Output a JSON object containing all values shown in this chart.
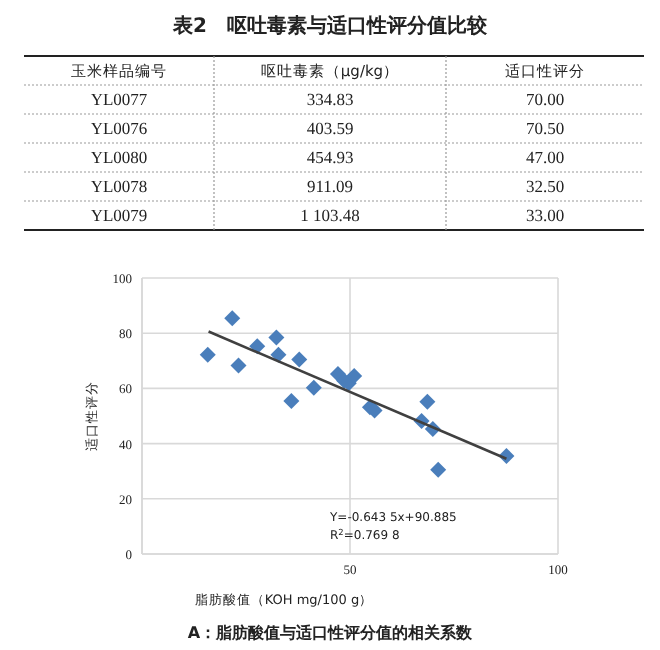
{
  "chart_data": [
    {
      "type": "other",
      "title": "表2　呕吐毒素与适口性评分值比较",
      "annotations": [
        "玉米样品编号",
        "呕吐毒素（μg/kg）",
        "适口性评分",
        "YL0077",
        "334.83",
        "70.00",
        "YL0076",
        "403.59",
        "70.50",
        "YL0080",
        "454.93",
        "47.00",
        "YL0078",
        "911.09",
        "32.50",
        "YL0079",
        "1 103.48",
        "33.00"
      ]
    },
    {
      "type": "scatter",
      "xlabel": "脂肪酸值（KOH mg/100 g）",
      "ylabel": "适口性评分",
      "xlim": [
        0,
        100
      ],
      "ylim": [
        0,
        100
      ],
      "xticks": [
        {
          "value": 0,
          "label": null
        },
        50,
        100
      ],
      "yticks": [
        0,
        20,
        40,
        60,
        80,
        100
      ],
      "grid": true,
      "series": [
        {
          "color": "#4a7ebb",
          "marker": "diamond",
          "x": [
            15.8,
            21.7,
            23.2,
            27.7,
            32.3,
            32.8,
            37.8,
            35.9,
            41.3,
            47.1,
            48.6,
            49.7,
            51.0,
            54.8,
            55.9,
            67.2,
            68.6,
            69.9,
            71.2,
            87.6
          ],
          "values": [
            72.2,
            85.4,
            68.3,
            75.3,
            78.4,
            72.2,
            70.5,
            55.4,
            60.2,
            65.2,
            62.8,
            61.9,
            64.5,
            53.2,
            52.0,
            48.2,
            55.2,
            45.3,
            30.5,
            35.5
          ]
        },
        {
          "type": "line",
          "marker": "none",
          "color": "#404040",
          "x": [
            16,
            87.6
          ],
          "values": [
            80.6,
            34.5
          ]
        }
      ],
      "annotations": [
        "Y=-0.643 5x+90.885",
        "R$^{2}$=0.769 8",
        "A：脂肪酸值与适口性评分值的相关系数"
      ]
    }
  ]
}
